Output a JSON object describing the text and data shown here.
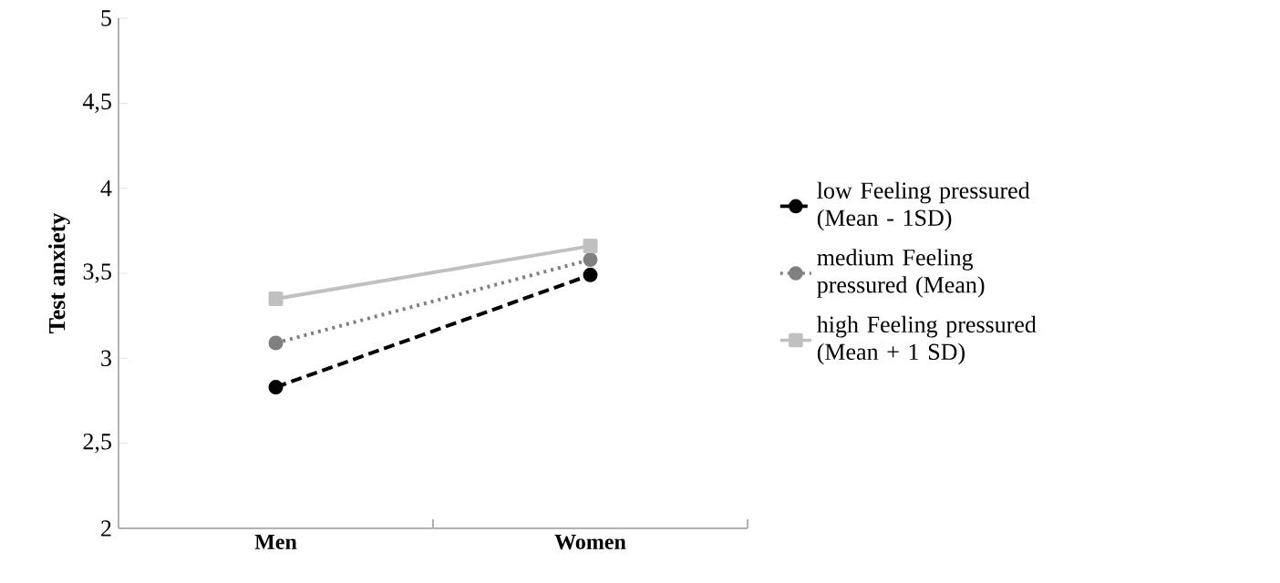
{
  "chart_data": {
    "type": "line",
    "ylabel": "Test anxiety",
    "categories": [
      "Men",
      "Women"
    ],
    "series": [
      {
        "name": "low Feeling pressured (Mean - 1SD)",
        "color": "#000000",
        "values": [
          2.83,
          3.49
        ],
        "marker": "circle",
        "line_style": "dashed"
      },
      {
        "name": "medium Feeling pressured (Mean)",
        "color": "#808080",
        "values": [
          3.09,
          3.58
        ],
        "marker": "circle",
        "line_style": "dotted"
      },
      {
        "name": "high Feeling pressured (Mean + 1 SD)",
        "color": "#c0c0c0",
        "values": [
          3.35,
          3.66
        ],
        "marker": "square",
        "line_style": "solid"
      }
    ],
    "ylim": [
      2,
      5
    ],
    "yticks": [
      2,
      {
        "value": 2.5,
        "label": "2,5"
      },
      3,
      {
        "value": 3.5,
        "label": "3,5"
      },
      4,
      {
        "value": 4.5,
        "label": "4,5"
      },
      5
    ],
    "grid": false,
    "legend": "right"
  }
}
